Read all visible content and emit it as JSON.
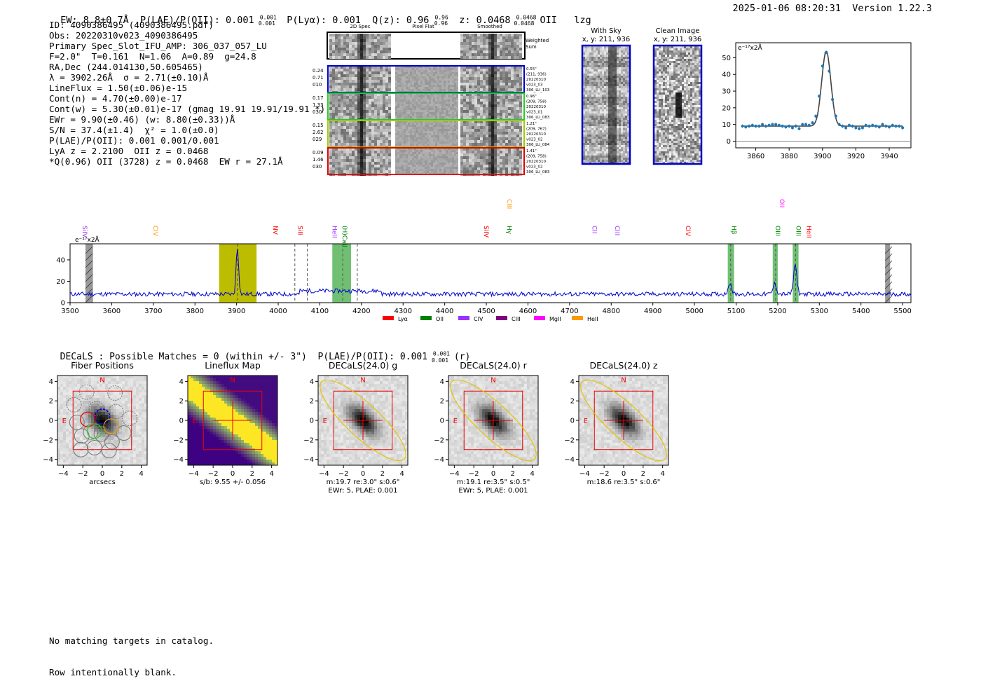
{
  "header": {
    "left": "EW: 8.8±0.7Å  P(LAE)/P(OII): 0.001 0.001/0.001  P(Lyα): 0.001  Q(z): 0.96 0.96/0.96  z: 0.0468 0.0468/0.0468 OII   lzg",
    "right": "2025-01-06 08:20:31  Version 1.22.3"
  },
  "info_lines": [
    "ID: 4090386495 (4090386495.pdf)",
    "Obs: 20220310v023_4090386495",
    "Primary Spec_Slot_IFU_AMP: 306_037_057_LU",
    "F=2.0\"  T=0.161  N=1.06  A=0.89  g=24.8",
    "RA,Dec (244.014130,50.605465)",
    "λ = 3902.26Å  σ = 2.71(±0.10)Å",
    "LineFlux = 1.50(±0.06)e-15",
    "Cont(n) = 4.70(±0.00)e-17",
    "Cont(w) = 5.30(±0.01)e-17 (gmag 19.91 19.91/19.91 *)",
    "EWr = 9.90(±0.46) (w: 8.80(±0.33))Å",
    "S/N = 37.4(±1.4)  χ² = 1.0(±0.0)",
    "P(LAE)/P(OII): 0.001 0.001/0.001",
    "LyA z = 2.2100  OII z = 0.0468",
    "*Q(0.96) OII (3728) z = 0.0468  EW r = 27.1Å"
  ],
  "cutouts": {
    "col_titles": [
      "2D Spec",
      "Pixel Flat",
      "Smoothed"
    ],
    "weighted_label": "Weighted Sum",
    "rows": [
      {
        "left": [
          "0.24",
          "0.71",
          "010"
        ],
        "right": [
          "0.55\"",
          "(211, 936)",
          "20220310",
          "v023_03",
          "306_LU_103"
        ],
        "color": "#0000cc"
      },
      {
        "left": [
          "0.17",
          "1.33",
          "030"
        ],
        "right": [
          "0.96\"",
          "(209, 758)",
          "20220310",
          "v023_01",
          "306_LU_083"
        ],
        "color": "#22cc22"
      },
      {
        "left": [
          "0.15",
          "2.62",
          "029"
        ],
        "right": [
          "1.21\"",
          "(209, 767)",
          "20220310",
          "v023_02",
          "306_LU_084"
        ],
        "color": "#99cc00"
      },
      {
        "left": [
          "0.09",
          "1.46",
          "030"
        ],
        "right": [
          "1.41\"",
          "(209, 758)",
          "20220310",
          "v023_02",
          "306_LU_083"
        ],
        "color": "#dd0000"
      }
    ]
  },
  "with_sky": {
    "title": "With Sky",
    "sub": "x, y: 211, 936"
  },
  "clean_image": {
    "title": "Clean Image",
    "sub": "x, y: 211, 936"
  },
  "colors": {
    "accent_blue": "#0000cc",
    "data_point": "#1f77b4",
    "fit_line": "#444444",
    "lya": "#ff0000",
    "oii": "#008000",
    "civ": "#9933ff",
    "ciii": "#800080",
    "mgii": "#ff00ff",
    "heii": "#ff9900",
    "band_yellow": "#bcbc00",
    "band_green": "#4caf50"
  },
  "chart_data": [
    {
      "type": "scatter",
      "name": "line_fit",
      "unit_label": "e⁻¹⁷x2Å",
      "xlim": [
        3848,
        3953
      ],
      "ylim": [
        -4,
        59
      ],
      "xticks": [
        3860,
        3880,
        3900,
        3920,
        3940
      ],
      "yticks": [
        0,
        10,
        20,
        30,
        40,
        50
      ],
      "points_x": [
        3852,
        3854,
        3856,
        3858,
        3860,
        3862,
        3864,
        3866,
        3868,
        3870,
        3872,
        3874,
        3876,
        3878,
        3880,
        3882,
        3884,
        3886,
        3888,
        3890,
        3892,
        3894,
        3896,
        3898,
        3900,
        3902,
        3904,
        3906,
        3908,
        3910,
        3912,
        3914,
        3916,
        3918,
        3920,
        3922,
        3924,
        3926,
        3928,
        3930,
        3932,
        3934,
        3936,
        3938,
        3940,
        3942,
        3944,
        3946,
        3948
      ],
      "points_y": [
        9,
        8.5,
        9,
        9.5,
        9,
        9,
        10,
        9,
        9.5,
        10,
        10,
        9.5,
        9,
        8.5,
        9,
        8,
        9,
        7.5,
        10,
        10,
        9.5,
        11,
        15,
        27,
        45,
        53,
        42,
        25,
        15,
        10,
        9,
        8,
        9.5,
        9,
        8,
        7.5,
        8,
        9.5,
        9,
        9.5,
        9,
        8.5,
        10,
        9,
        8.5,
        9.5,
        9,
        9,
        8
      ]
    },
    {
      "type": "line",
      "name": "full_spectrum",
      "unit_label": "e⁻¹⁷x2Å",
      "xlim": [
        3500,
        5520
      ],
      "ylim": [
        0,
        55
      ],
      "xticks": [
        3500,
        3600,
        3700,
        3800,
        3900,
        4000,
        4100,
        4200,
        4300,
        4400,
        4500,
        4600,
        4700,
        4800,
        4900,
        5000,
        5100,
        5200,
        5300,
        5400,
        5500
      ],
      "yticks": [
        0,
        20,
        40
      ],
      "peaks": [
        {
          "x": 3902,
          "y": 52
        },
        {
          "x": 5085,
          "y": 19
        },
        {
          "x": 5193,
          "y": 18
        },
        {
          "x": 5242,
          "y": 35
        }
      ],
      "lines": [
        {
          "label": "SiIV",
          "x": 3530,
          "color": "#9933ff",
          "y_level": 0
        },
        {
          "label": "CIV",
          "x": 3700,
          "color": "#ff9900",
          "y_level": 0
        },
        {
          "label": "NV",
          "x": 3988,
          "color": "#ff0000",
          "y_level": 0
        },
        {
          "label": "SiII",
          "x": 4048,
          "color": "#ff0000",
          "y_level": 0
        },
        {
          "label": "HeII",
          "x": 4130,
          "color": "#9933ff",
          "y_level": 0
        },
        {
          "label": "(H)CaII",
          "x": 4155,
          "color": "#008000",
          "y_level": 0
        },
        {
          "label": "SiIV",
          "x": 4495,
          "color": "#ff0000",
          "y_level": 0
        },
        {
          "label": "Hγ",
          "x": 4550,
          "color": "#008000",
          "y_level": 0
        },
        {
          "label": "CIII",
          "x": 4550,
          "color": "#ff9900",
          "y_level": 1
        },
        {
          "label": "CII",
          "x": 4755,
          "color": "#9933ff",
          "y_level": 0
        },
        {
          "label": "CIII",
          "x": 4810,
          "color": "#9933ff",
          "y_level": 0
        },
        {
          "label": "CIV",
          "x": 4980,
          "color": "#ff0000",
          "y_level": 0
        },
        {
          "label": "Hβ",
          "x": 5090,
          "color": "#008000",
          "y_level": 0
        },
        {
          "label": "OIII",
          "x": 5195,
          "color": "#008000",
          "y_level": 0
        },
        {
          "label": "OII",
          "x": 5205,
          "color": "#ff00ff",
          "y_level": 1
        },
        {
          "label": "OIII",
          "x": 5245,
          "color": "#008000",
          "y_level": 0
        },
        {
          "label": "HeII",
          "x": 5270,
          "color": "#ff0000",
          "y_level": 0
        }
      ],
      "legend": [
        {
          "label": "Lyα",
          "color": "#ff0000"
        },
        {
          "label": "OII",
          "color": "#008000"
        },
        {
          "label": "CIV",
          "color": "#9933ff"
        },
        {
          "label": "CIII",
          "color": "#800080"
        },
        {
          "label": "MgII",
          "color": "#ff00ff"
        },
        {
          "label": "HeII",
          "color": "#ff9900"
        }
      ]
    }
  ],
  "decals_header": "DECaLS : Possible Matches = 0 (within +/- 3\")  P(LAE)/P(OII): 0.001 0.001/0.001 (r)",
  "imaging": {
    "ticks": [
      "−4",
      "−2",
      "0",
      "2",
      "4"
    ],
    "compass_n": "N",
    "compass_e": "E",
    "panels": [
      {
        "title": "Fiber Positions",
        "caption1": "arcsecs",
        "caption2": ""
      },
      {
        "title": "Lineflux Map",
        "caption1": "s/b: 9.55 +/- 0.056",
        "caption2": ""
      },
      {
        "title": "DECaLS(24.0) g",
        "caption1": "m:19.7  re:3.0\"  s:0.6\"",
        "caption2": "EWr: 5, PLAE: 0.001"
      },
      {
        "title": "DECaLS(24.0) r",
        "caption1": "m:19.1  re:3.5\"  s:0.5\"",
        "caption2": "EWr: 5, PLAE: 0.001"
      },
      {
        "title": "DECaLS(24.0) z",
        "caption1": "m:18.6  re:3.5\"  s:0.6\"",
        "caption2": ""
      }
    ]
  },
  "footer": [
    "No matching targets in catalog.",
    "Row intentionally blank."
  ]
}
